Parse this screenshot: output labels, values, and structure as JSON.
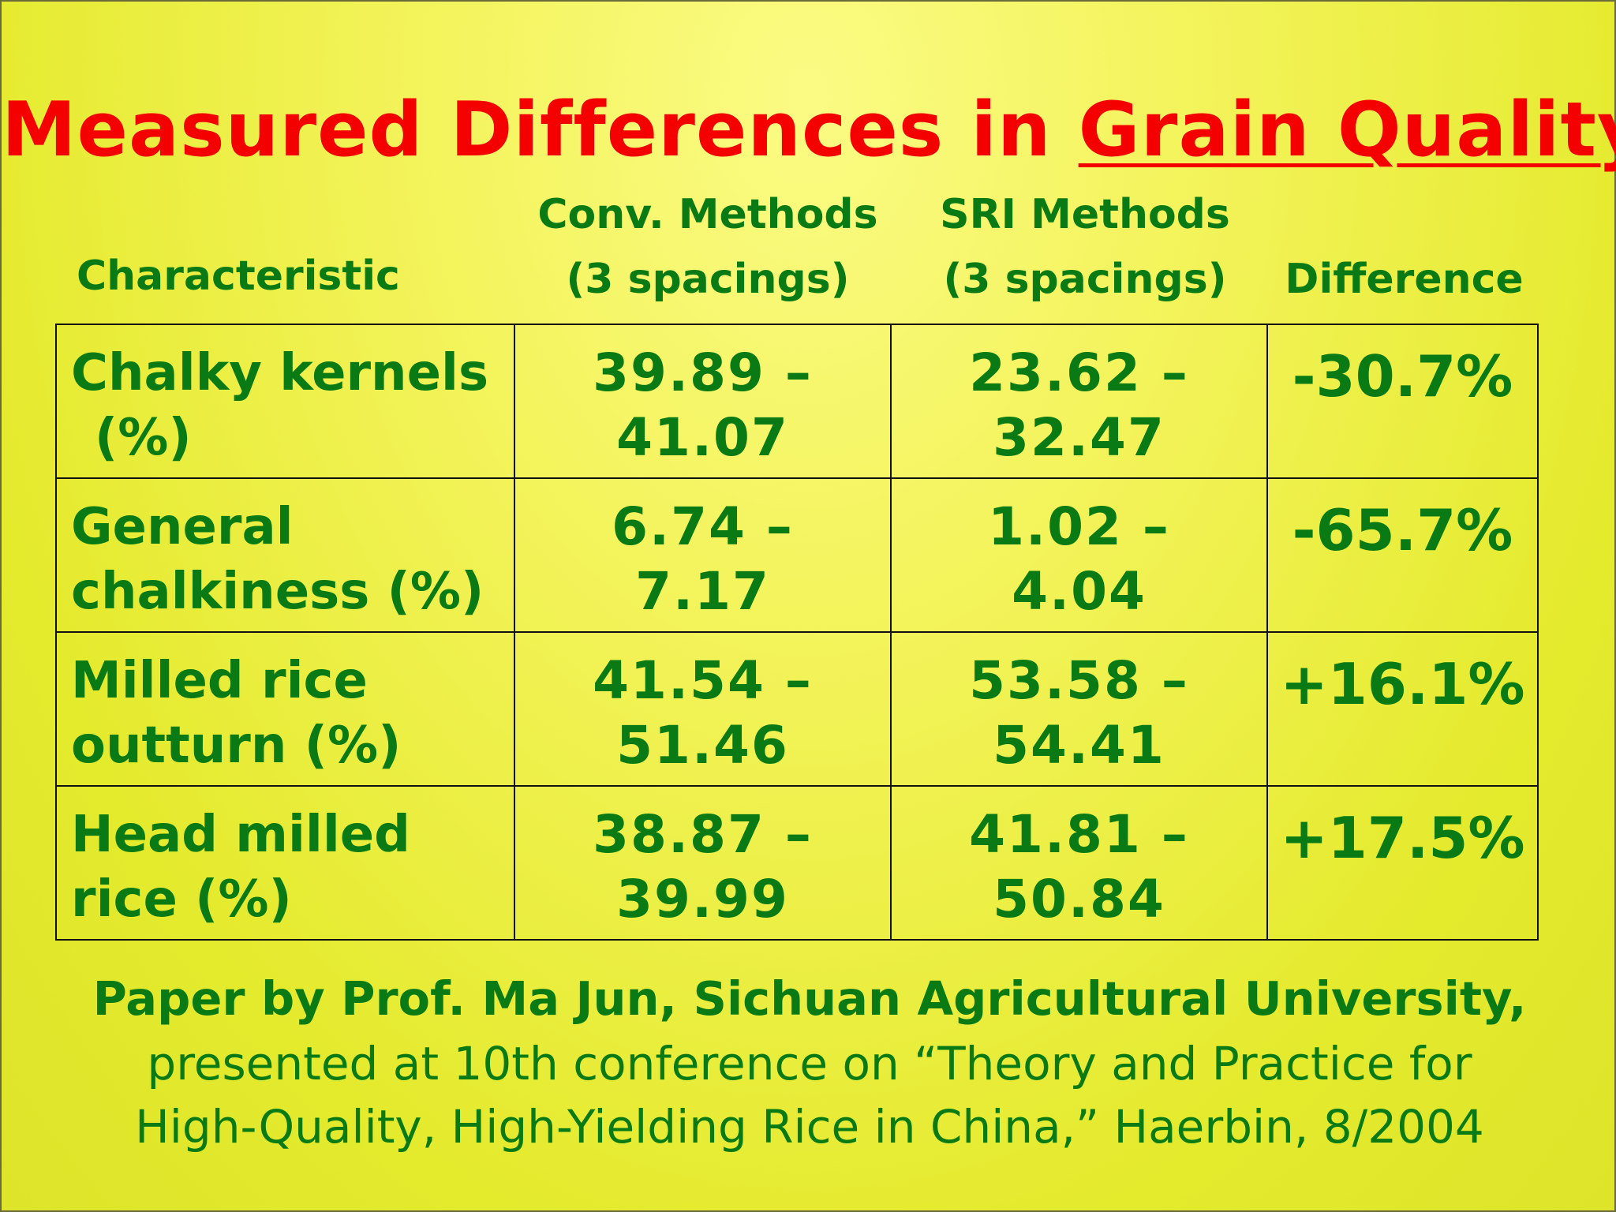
{
  "title": {
    "prefix": "Measured Differences in ",
    "underlined": "Grain Quality"
  },
  "table": {
    "headers": {
      "characteristic": "Characteristic",
      "conv_line1": "Conv. Methods",
      "conv_line2": "(3 spacings)",
      "sri_line1": "SRI Methods",
      "sri_line2": "(3 spacings)",
      "difference": "Difference"
    },
    "rows": [
      {
        "label_line1": "Chalky kernels",
        "label_line2": "(%)",
        "conv_line1": "39.89 –",
        "conv_line2": "41.07",
        "sri_line1": "23.62 –",
        "sri_line2": "32.47",
        "difference": "-30.7%"
      },
      {
        "label_line1": "General",
        "label_line2": "chalkiness (%)",
        "conv_line1": "6.74 –",
        "conv_line2": "7.17",
        "sri_line1": "1.02 –",
        "sri_line2": "4.04",
        "difference": "-65.7%"
      },
      {
        "label_line1": "Milled rice",
        "label_line2": "outturn (%)",
        "conv_line1": "41.54 –",
        "conv_line2": "51.46",
        "sri_line1": "53.58 –",
        "sri_line2": "54.41",
        "difference": "+16.1%"
      },
      {
        "label_line1": "Head milled",
        "label_line2": "rice (%)",
        "conv_line1": "38.87 –",
        "conv_line2": "39.99",
        "sri_line1": "41.81 –",
        "sri_line2": "50.84",
        "difference": "+17.5%"
      }
    ]
  },
  "footer": {
    "line1": "Paper by Prof. Ma Jun, Sichuan Agricultural University,",
    "line2": "presented at 10th conference on “Theory and Practice for",
    "line3": "High-Quality, High-Yielding Rice in China,” Haerbin, 8/2004"
  },
  "colors": {
    "title": "#f40000",
    "text": "#0a7a14",
    "background": "#f3f35a"
  }
}
